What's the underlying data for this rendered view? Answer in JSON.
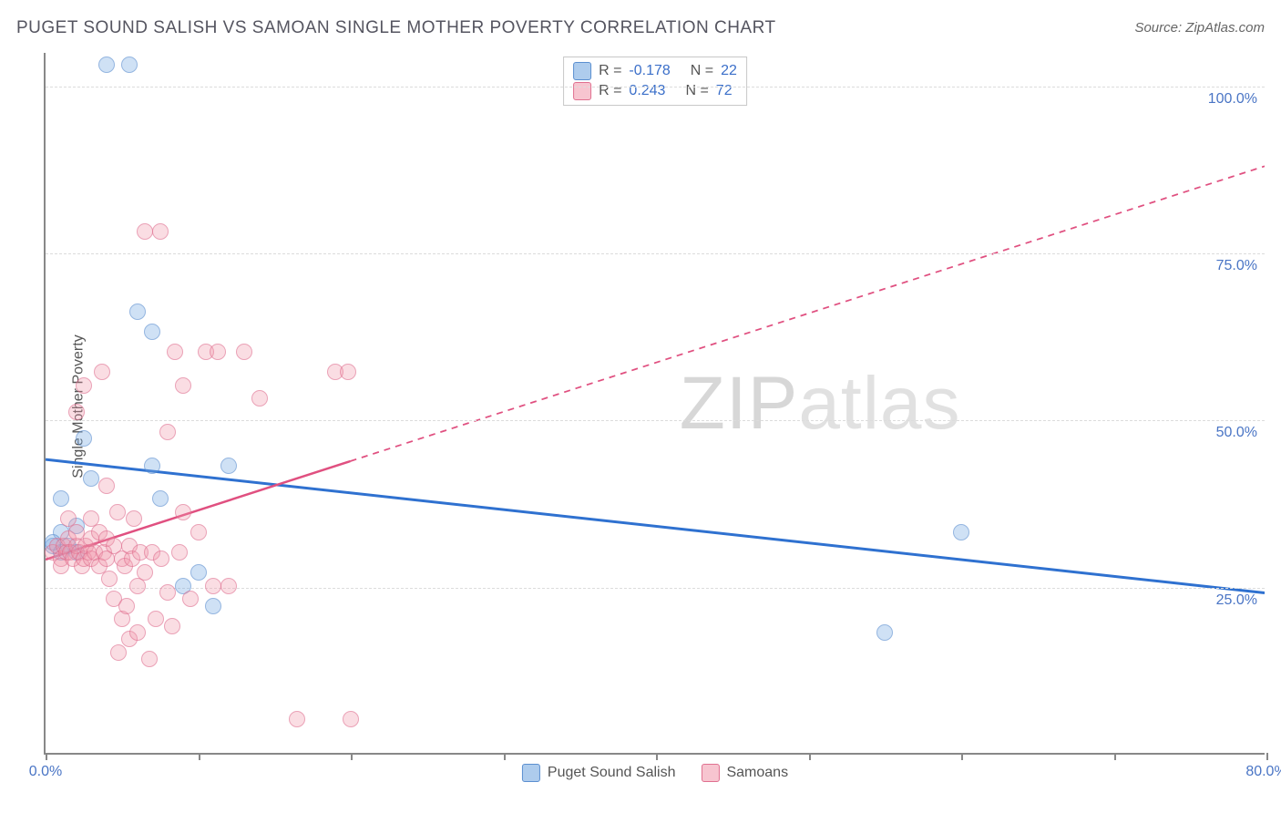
{
  "title": "PUGET SOUND SALISH VS SAMOAN SINGLE MOTHER POVERTY CORRELATION CHART",
  "source": "Source: ZipAtlas.com",
  "ylabel": "Single Mother Poverty",
  "watermark_a": "ZIP",
  "watermark_b": "atlas",
  "chart": {
    "type": "scatter",
    "xlim": [
      0,
      80
    ],
    "ylim": [
      0,
      105
    ],
    "tick_color": "#888888",
    "label_color": "#4a75c5",
    "grid_color": "#dcdcdc",
    "background_color": "#ffffff",
    "x_ticks": [
      0,
      10,
      20,
      30,
      40,
      50,
      60,
      70,
      80
    ],
    "x_tick_labels": {
      "0": "0.0%",
      "80": "80.0%"
    },
    "y_gridlines": [
      25,
      50,
      75,
      100
    ],
    "y_tick_labels": {
      "25": "25.0%",
      "50": "50.0%",
      "75": "75.0%",
      "100": "100.0%"
    },
    "series": [
      {
        "name": "Puget Sound Salish",
        "color_fill": "rgba(120,170,225,0.55)",
        "color_stroke": "#5b8fd0",
        "css": "p-blue",
        "R": "-0.178",
        "N": "22",
        "trend": {
          "x1": 0,
          "y1": 44,
          "x2": 80,
          "y2": 24,
          "solid_until_x": 80,
          "stroke": "#2f71d0",
          "width": 3
        },
        "points": [
          [
            4,
            103
          ],
          [
            5.5,
            103
          ],
          [
            1,
            38
          ],
          [
            1.5,
            31
          ],
          [
            1,
            33
          ],
          [
            0.5,
            31
          ],
          [
            1,
            30
          ],
          [
            2,
            30
          ],
          [
            2.5,
            47
          ],
          [
            3,
            41
          ],
          [
            6,
            66
          ],
          [
            7,
            63
          ],
          [
            7.5,
            38
          ],
          [
            7,
            43
          ],
          [
            11,
            22
          ],
          [
            12,
            43
          ],
          [
            9,
            25
          ],
          [
            10,
            27
          ],
          [
            0.5,
            31.5
          ],
          [
            2,
            34
          ],
          [
            55,
            18
          ],
          [
            60,
            33
          ]
        ]
      },
      {
        "name": "Samoans",
        "color_fill": "rgba(240,150,170,0.5)",
        "color_stroke": "#e07090",
        "css": "p-pink",
        "R": "0.243",
        "N": "72",
        "trend": {
          "x1": 0,
          "y1": 29,
          "x2": 80,
          "y2": 88,
          "solid_until_x": 20,
          "stroke": "#e05080",
          "width": 2.5
        },
        "points": [
          [
            0.5,
            30
          ],
          [
            0.8,
            31
          ],
          [
            1,
            29
          ],
          [
            1,
            28
          ],
          [
            1.2,
            31
          ],
          [
            1.4,
            30
          ],
          [
            1.5,
            32
          ],
          [
            1.5,
            35
          ],
          [
            1.6,
            30
          ],
          [
            1.8,
            29
          ],
          [
            2,
            31
          ],
          [
            2,
            33
          ],
          [
            2,
            51
          ],
          [
            2.2,
            30
          ],
          [
            2.4,
            28
          ],
          [
            2.5,
            29
          ],
          [
            2.5,
            55
          ],
          [
            2.6,
            31
          ],
          [
            2.8,
            30
          ],
          [
            3,
            32
          ],
          [
            3,
            29
          ],
          [
            3,
            35
          ],
          [
            3.2,
            30
          ],
          [
            3.5,
            28
          ],
          [
            3.5,
            33
          ],
          [
            3.7,
            57
          ],
          [
            3.8,
            30
          ],
          [
            4,
            29
          ],
          [
            4,
            32
          ],
          [
            4,
            40
          ],
          [
            4.2,
            26
          ],
          [
            4.5,
            31
          ],
          [
            4.5,
            23
          ],
          [
            4.7,
            36
          ],
          [
            4.8,
            15
          ],
          [
            5,
            29
          ],
          [
            5,
            20
          ],
          [
            5.2,
            28
          ],
          [
            5.3,
            22
          ],
          [
            5.5,
            31
          ],
          [
            5.5,
            17
          ],
          [
            5.7,
            29
          ],
          [
            5.8,
            35
          ],
          [
            6,
            25
          ],
          [
            6,
            18
          ],
          [
            6.2,
            30
          ],
          [
            6.5,
            27
          ],
          [
            6.5,
            78
          ],
          [
            6.8,
            14
          ],
          [
            7,
            30
          ],
          [
            7.2,
            20
          ],
          [
            7.5,
            78
          ],
          [
            7.6,
            29
          ],
          [
            8,
            24
          ],
          [
            8,
            48
          ],
          [
            8.3,
            19
          ],
          [
            8.5,
            60
          ],
          [
            8.8,
            30
          ],
          [
            9,
            36
          ],
          [
            9,
            55
          ],
          [
            9.5,
            23
          ],
          [
            10,
            33
          ],
          [
            10.5,
            60
          ],
          [
            11,
            25
          ],
          [
            11.3,
            60
          ],
          [
            12,
            25
          ],
          [
            13,
            60
          ],
          [
            14,
            53
          ],
          [
            16.5,
            5
          ],
          [
            19,
            57
          ],
          [
            19.8,
            57
          ],
          [
            20,
            5
          ]
        ]
      }
    ]
  },
  "legend": {
    "items": [
      {
        "label": "Puget Sound Salish",
        "css": "sw-blue"
      },
      {
        "label": "Samoans",
        "css": "sw-pink"
      }
    ]
  }
}
